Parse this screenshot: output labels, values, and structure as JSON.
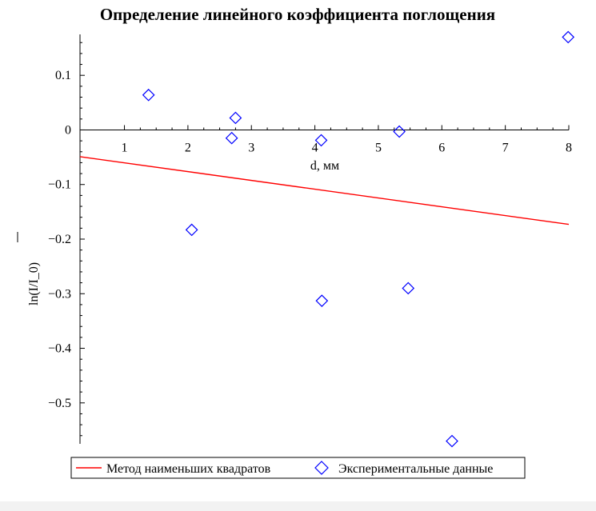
{
  "chart_data": {
    "type": "scatter",
    "title": "Определение линейного коэффициента поглощения",
    "xlabel": "d, мм",
    "ylabel": "ln(I/I_0)",
    "xlim": [
      0.3,
      8.0
    ],
    "ylim": [
      -0.575,
      0.175
    ],
    "xticks": [
      "1",
      "2",
      "3",
      "4",
      "5",
      "6",
      "7",
      "8"
    ],
    "yticks": [
      "0.1",
      "0",
      "−0.1",
      "−0.2",
      "−0.3",
      "−0.4",
      "−0.5"
    ],
    "yticks_values": [
      0.1,
      0,
      -0.1,
      -0.2,
      -0.3,
      -0.4,
      -0.5
    ],
    "grid": false,
    "legend_position": "bottom",
    "series": [
      {
        "name": "Метод наименьших квадратов",
        "kind": "line",
        "color": "#ff0000",
        "x": [
          0.3,
          8.0
        ],
        "y": [
          -0.049,
          -0.173
        ]
      },
      {
        "name": "Экспериментальные данные",
        "kind": "scatter",
        "marker": "diamond",
        "color": "#0000ff",
        "x": [
          1.38,
          2.06,
          2.69,
          2.75,
          4.1,
          4.11,
          5.33,
          5.47,
          6.16,
          7.99
        ],
        "y": [
          0.064,
          -0.183,
          -0.015,
          0.022,
          -0.019,
          -0.313,
          -0.003,
          -0.29,
          -0.57,
          0.17
        ]
      }
    ]
  }
}
